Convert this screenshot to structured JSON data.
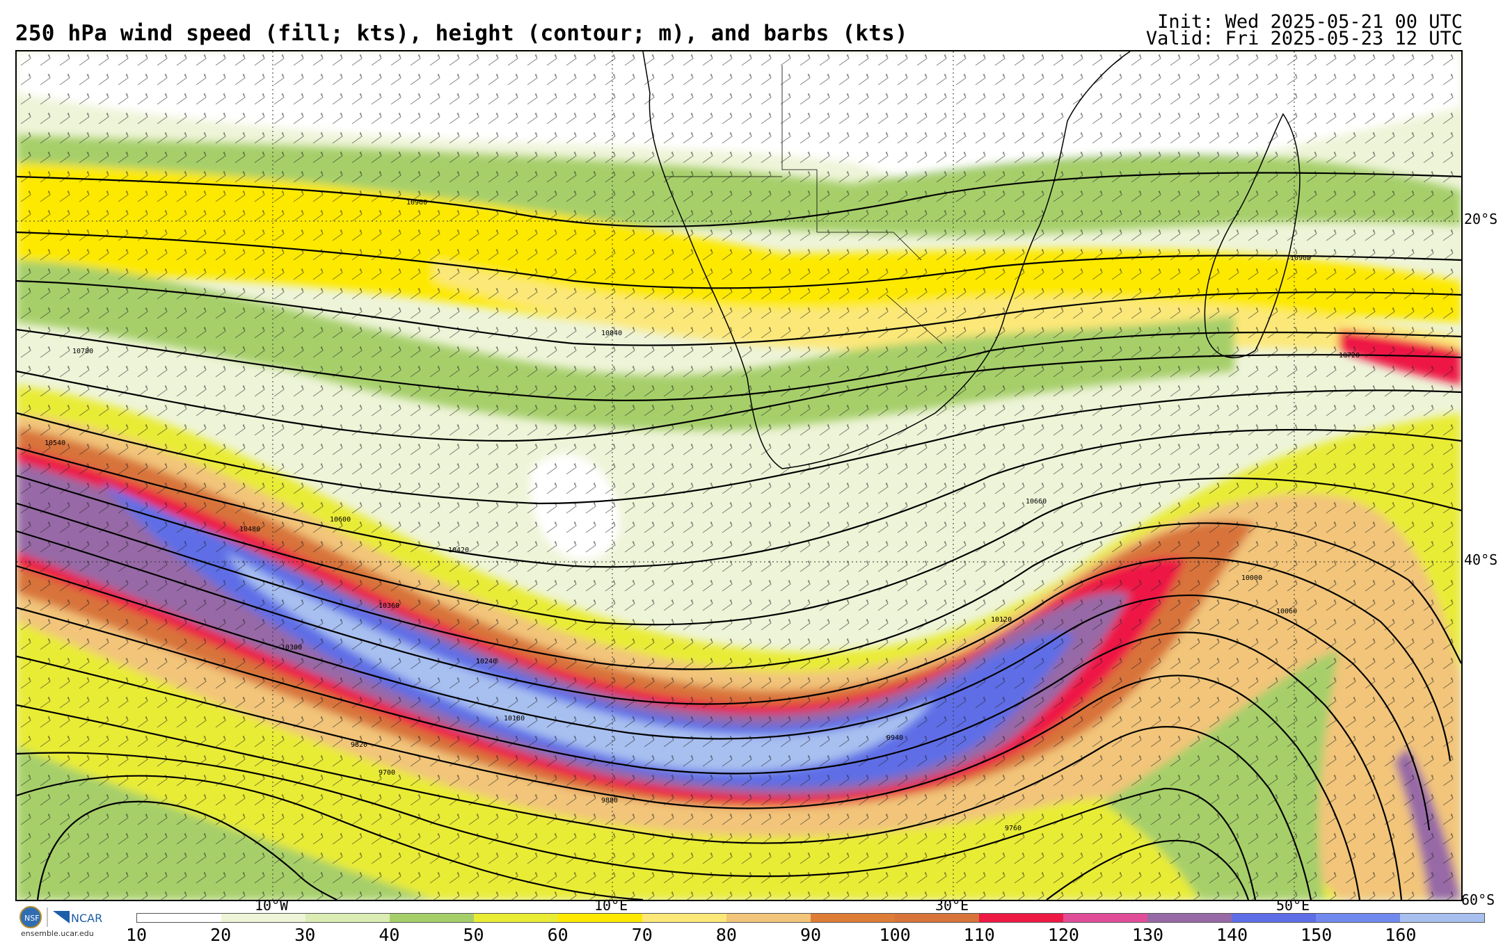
{
  "title": "250 hPa wind speed (fill; kts), height (contour; m), and barbs (kts)",
  "init_label": "Init: Wed 2025-05-21 00 UTC",
  "valid_label": "Valid: Fri 2025-05-23 12 UTC",
  "lat_labels": [
    "20°S",
    "40°S",
    "60°S"
  ],
  "lon_labels": [
    "10°W",
    "10°E",
    "30°E",
    "50°E"
  ],
  "contour_labels": [
    "10960",
    "10900",
    "10840",
    "10780",
    "10720",
    "10660",
    "10600",
    "10540",
    "10480",
    "10420",
    "10360",
    "10300",
    "10240",
    "10180",
    "10120",
    "10060",
    "10000",
    "9940",
    "9880",
    "9820",
    "9760",
    "9700"
  ],
  "colorbar": {
    "ticks": [
      "10",
      "20",
      "30",
      "40",
      "50",
      "60",
      "70",
      "80",
      "90",
      "100",
      "110",
      "120",
      "130",
      "140",
      "150",
      "160"
    ],
    "colors": [
      "#ffffff",
      "#eef4d8",
      "#dbedb3",
      "#a6cf6b",
      "#e9ec35",
      "#fde900",
      "#fce879",
      "#f2c57a",
      "#de7d35",
      "#d8733a",
      "#ee1944",
      "#e14d97",
      "#9769a6",
      "#5e6ee6",
      "#7189ee",
      "#a8c0f0"
    ]
  },
  "logo": {
    "site": "ensemble.ucar.edu",
    "org1": "NSF",
    "org2": "NCAR"
  },
  "colors": {
    "jet_core": "#7189ee",
    "fill_base": "#eef4d8",
    "contour": "#000000"
  }
}
